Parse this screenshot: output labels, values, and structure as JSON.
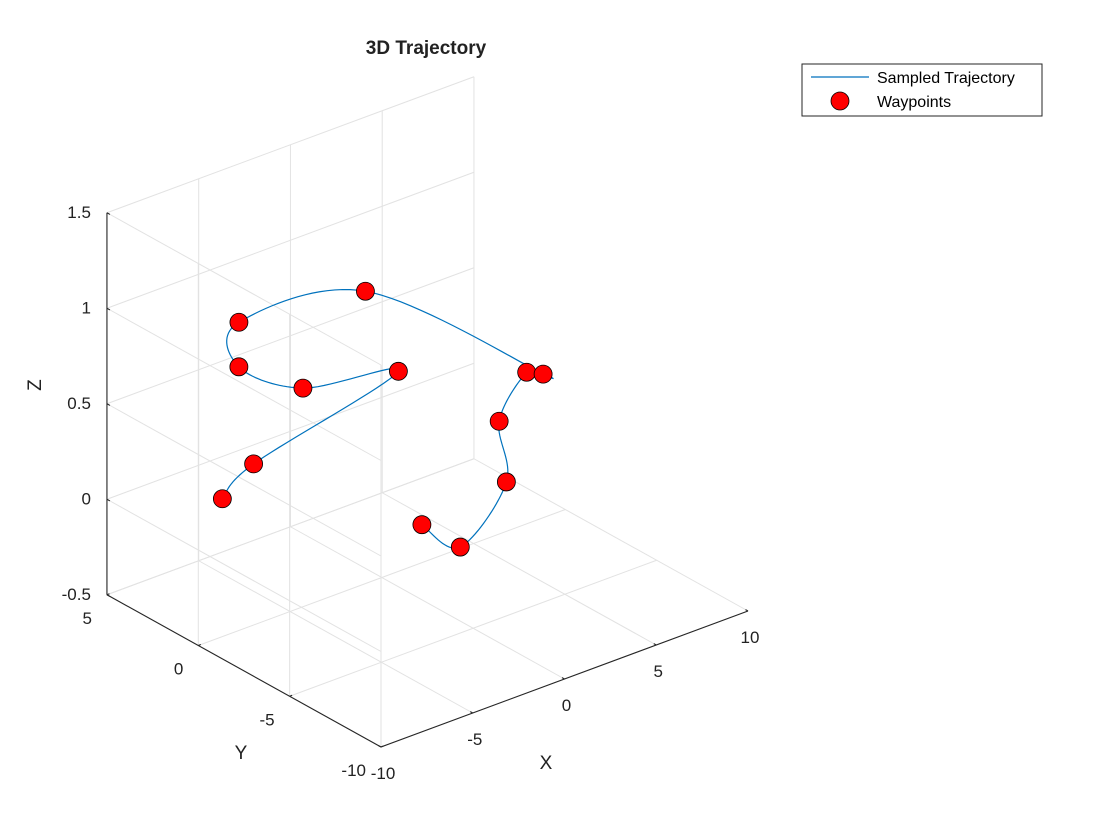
{
  "chart_data": {
    "type": "line",
    "title": "3D Trajectory",
    "xlabel": "X",
    "ylabel": "Y",
    "zlabel": "Z",
    "xlim": [
      -10,
      10
    ],
    "ylim": [
      -10,
      5
    ],
    "zlim": [
      -0.5,
      1.5
    ],
    "x_ticks": [
      -10,
      -5,
      0,
      5,
      10
    ],
    "y_ticks": [
      -10,
      -5,
      0,
      5
    ],
    "z_ticks": [
      -0.5,
      0,
      0.5,
      1,
      1.5
    ],
    "x_tick_labels": [
      "-10",
      "-5",
      "0",
      "5",
      "10"
    ],
    "y_tick_labels": [
      "-10",
      "-5",
      "0",
      "5"
    ],
    "z_tick_labels": [
      "-0.5",
      "0",
      "0.5",
      "1",
      "1.5"
    ],
    "grid": true,
    "legend_position": "top-right, outside axes",
    "series": [
      {
        "name": "Sampled Trajectory",
        "style": "line",
        "color": "#0072BD",
        "points": [
          [
            -1.2,
            -3.4,
            0.0
          ],
          [
            -0.7,
            -5.0,
            -0.05
          ],
          [
            4.3,
            -2.5,
            -0.02
          ],
          [
            5.5,
            -0.9,
            0.17
          ],
          [
            6.7,
            -1.2,
            0.4
          ],
          [
            6.9,
            -1.9,
            0.42
          ],
          [
            0.8,
            1.7,
            0.88
          ],
          [
            -4.6,
            3.2,
            0.83
          ],
          [
            -5.2,
            2.6,
            0.65
          ],
          [
            -3.8,
            0.5,
            0.6
          ],
          [
            2.0,
            1.1,
            0.45
          ],
          [
            -3.8,
            3.2,
            0.06
          ],
          [
            -6.2,
            2.5,
            0.0
          ]
        ]
      },
      {
        "name": "Waypoints",
        "style": "markers",
        "color": "#FF0000",
        "edge_color": "#000000",
        "points": [
          [
            -1.2,
            -3.4,
            0.0
          ],
          [
            -0.7,
            -5.0,
            -0.05
          ],
          [
            4.3,
            -2.5,
            -0.02
          ],
          [
            5.5,
            -0.9,
            0.17
          ],
          [
            6.7,
            -1.2,
            0.4
          ],
          [
            6.9,
            -1.9,
            0.42
          ],
          [
            0.8,
            1.7,
            0.88
          ],
          [
            -4.6,
            3.2,
            0.83
          ],
          [
            -5.2,
            2.6,
            0.65
          ],
          [
            -3.8,
            0.5,
            0.6
          ],
          [
            2.0,
            1.1,
            0.45
          ],
          [
            -3.8,
            3.2,
            0.06
          ],
          [
            -6.2,
            2.5,
            0.0
          ]
        ]
      }
    ]
  }
}
